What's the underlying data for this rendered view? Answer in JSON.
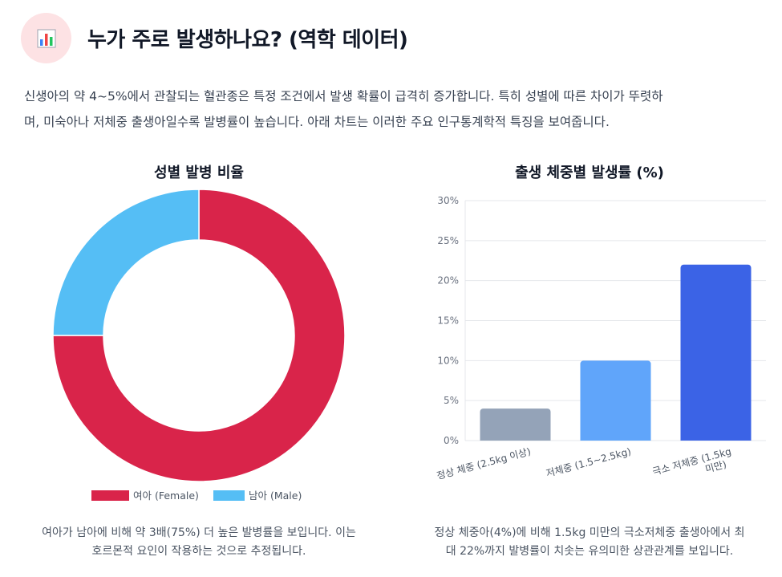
{
  "header": {
    "icon": "bar-chart-icon",
    "title": "누가 주로 발생하나요? (역학 데이터)"
  },
  "intro": {
    "line1": "신생아의 약 4~5%에서 관찰되는 혈관종은 특정 조건에서 발생 확률이 급격히 증가합니다. 특히 성별에 따른 차이가 뚜렷하",
    "line2": "며, 미숙아나 저체중 출생아일수록 발병률이 높습니다. 아래 차트는 이러한 주요 인구통계학적 특징을 보여줍니다."
  },
  "captions": {
    "left_line1": "여아가 남아에 비해 약 3배(75%) 더 높은 발병률을 보입니다. 이는",
    "left_line2": "호르몬적 요인이 작용하는 것으로 추정됩니다.",
    "right_line1": "정상 체중아(4%)에 비해 1.5kg 미만의 극소저체중 출생아에서 최",
    "right_line2": "대 22%까지 발병률이 치솟는 유의미한 상관관계를 보입니다."
  },
  "chart_data": [
    {
      "type": "pie",
      "variant": "doughnut",
      "title": "성별 발병 비율",
      "categories": [
        "여아 (Female)",
        "남아 (Male)"
      ],
      "values": [
        75,
        25
      ],
      "colors": [
        "#d9244a",
        "#55bef5"
      ],
      "legend": "bottom"
    },
    {
      "type": "bar",
      "title": "출생 체중별 발생률 (%)",
      "categories": [
        "정상 체중 (2.5kg 이상)",
        "저체중 (1.5~2.5kg)",
        "극소 저체중 (1.5kg 미만)"
      ],
      "values": [
        4,
        10,
        22
      ],
      "colors": [
        "#94a3b8",
        "#60a5fa",
        "#3b63e6"
      ],
      "ylim": [
        0,
        30
      ],
      "yticks": [
        "0%",
        "5%",
        "10%",
        "15%",
        "20%",
        "25%",
        "30%"
      ],
      "grid": true
    }
  ]
}
